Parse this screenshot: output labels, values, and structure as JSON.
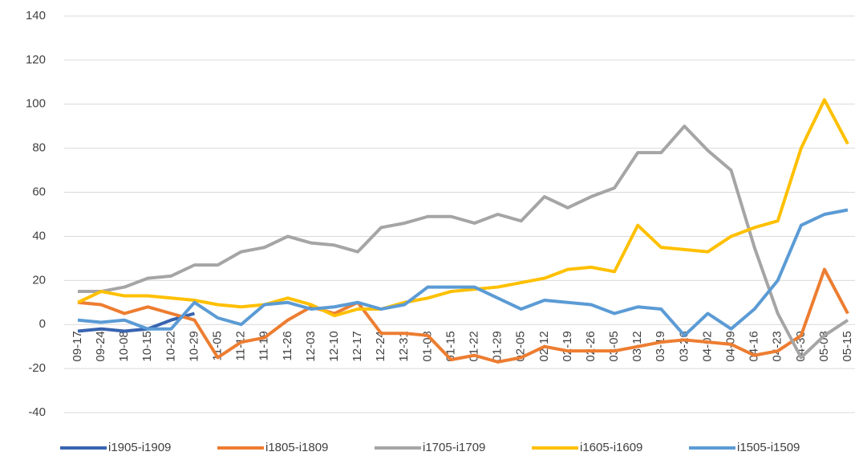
{
  "chart_data": {
    "type": "line",
    "categories": [
      "09-17",
      "09-24",
      "10-08",
      "10-15",
      "10-22",
      "10-29",
      "11-05",
      "11-12",
      "11-19",
      "11-26",
      "12-03",
      "12-10",
      "12-17",
      "12-24",
      "12-31",
      "01-08",
      "01-15",
      "01-22",
      "01-29",
      "02-05",
      "02-12",
      "02-19",
      "02-26",
      "03-05",
      "03-12",
      "03-19",
      "03-26",
      "04-02",
      "04-09",
      "04-16",
      "04-23",
      "04-30",
      "05-08",
      "05-15"
    ],
    "series": [
      {
        "name": "i1905-i1909",
        "color": "#3864b0",
        "values": [
          -3,
          -2,
          -3,
          -2,
          2,
          5,
          null,
          null,
          null,
          null,
          null,
          null,
          null,
          null,
          null,
          null,
          null,
          null,
          null,
          null,
          null,
          null,
          null,
          null,
          null,
          null,
          null,
          null,
          null,
          null,
          null,
          null,
          null,
          null
        ]
      },
      {
        "name": "i1805-i1809",
        "color": "#ed7d31",
        "values": [
          10,
          9,
          5,
          8,
          5,
          2,
          -15,
          -8,
          -6,
          2,
          8,
          5,
          10,
          -4,
          -4,
          -5,
          -16,
          -14,
          -17,
          -15,
          -10,
          -12,
          -12,
          -12,
          -10,
          -8,
          -7,
          -8,
          -9,
          -14,
          -12,
          -5,
          25,
          5
        ]
      },
      {
        "name": "i1705-i1709",
        "color": "#a5a5a5",
        "values": [
          15,
          15,
          17,
          21,
          22,
          27,
          27,
          33,
          35,
          40,
          37,
          36,
          33,
          44,
          46,
          49,
          49,
          46,
          50,
          47,
          58,
          53,
          58,
          62,
          78,
          78,
          90,
          79,
          70,
          35,
          5,
          -15,
          -5,
          2
        ]
      },
      {
        "name": "i1605-i1609",
        "color": "#ffc000",
        "values": [
          10,
          15,
          13,
          13,
          12,
          11,
          9,
          8,
          9,
          12,
          9,
          4,
          7,
          7,
          10,
          12,
          15,
          16,
          17,
          19,
          21,
          25,
          26,
          24,
          45,
          35,
          34,
          33,
          40,
          44,
          47,
          80,
          102,
          82
        ]
      },
      {
        "name": "i1505-i1509",
        "color": "#5b9bd5",
        "values": [
          2,
          1,
          2,
          -2,
          -2,
          10,
          3,
          0,
          9,
          10,
          7,
          8,
          10,
          7,
          9,
          17,
          17,
          17,
          12,
          7,
          11,
          10,
          9,
          5,
          8,
          7,
          -5,
          5,
          -2,
          7,
          20,
          45,
          50,
          52
        ]
      }
    ],
    "ylim": [
      -40,
      140
    ],
    "yticks": [
      -40,
      -20,
      0,
      20,
      40,
      60,
      80,
      100,
      120,
      140
    ],
    "grid": true
  }
}
